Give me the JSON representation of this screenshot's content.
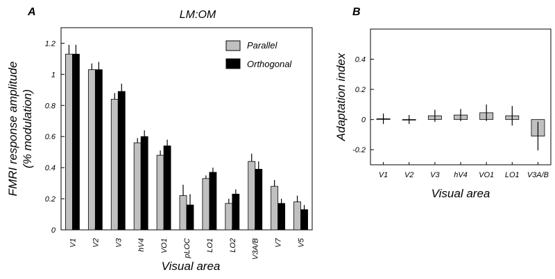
{
  "chart_data": [
    {
      "panel": "A",
      "type": "bar",
      "title": "LM:OM",
      "xlabel": "Visual area",
      "ylabel": "FMRI response amplitude",
      "ylabel_sub": "(% modulation)",
      "ylim": [
        0,
        1.3
      ],
      "yticks": [
        0,
        0.2,
        0.4,
        0.6,
        0.8,
        1,
        1.2
      ],
      "ytick_labels": [
        "0",
        "0.2",
        "0.4",
        "0.6",
        "0.8",
        "1",
        "1.2"
      ],
      "grid": false,
      "legend_position": "top-right",
      "categories": [
        "V1",
        "V2",
        "V3",
        "hV4",
        "VO1",
        "pLOC",
        "LO1",
        "LO2",
        "V3A/B",
        "V7",
        "V5"
      ],
      "series": [
        {
          "name": "Parallel",
          "color": "#c0c0c0",
          "values": [
            1.13,
            1.03,
            0.84,
            0.56,
            0.48,
            0.22,
            0.33,
            0.17,
            0.44,
            0.28,
            0.18
          ],
          "errors": [
            0.06,
            0.04,
            0.04,
            0.03,
            0.03,
            0.07,
            0.02,
            0.03,
            0.05,
            0.04,
            0.04
          ]
        },
        {
          "name": "Orthogonal",
          "color": "#000000",
          "values": [
            1.13,
            1.03,
            0.89,
            0.6,
            0.54,
            0.16,
            0.37,
            0.23,
            0.39,
            0.17,
            0.13
          ],
          "errors": [
            0.06,
            0.05,
            0.05,
            0.04,
            0.04,
            0.07,
            0.03,
            0.03,
            0.05,
            0.03,
            0.03
          ]
        }
      ]
    },
    {
      "panel": "B",
      "type": "bar",
      "title": "",
      "xlabel": "Visual area",
      "ylabel": "Adaptation index",
      "ylim": [
        -0.3,
        0.6
      ],
      "yticks": [
        -0.2,
        0,
        0.2,
        0.4
      ],
      "ytick_labels": [
        "-0.2",
        "0",
        "0.2",
        "0.4"
      ],
      "grid": false,
      "categories": [
        "V1",
        "V2",
        "V3",
        "hV4",
        "VO1",
        "LO1",
        "V3A/B"
      ],
      "series": [
        {
          "name": "",
          "color": "#c0c0c0",
          "values": [
            0.005,
            0.0,
            0.025,
            0.03,
            0.045,
            0.025,
            -0.11
          ],
          "errors": [
            0.035,
            0.03,
            0.04,
            0.04,
            0.055,
            0.065,
            0.095
          ]
        }
      ]
    }
  ]
}
